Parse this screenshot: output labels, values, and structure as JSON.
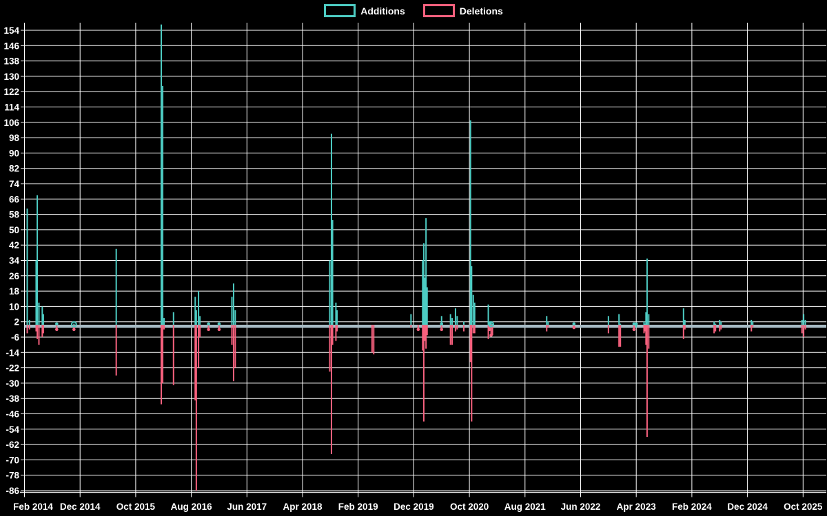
{
  "legend": {
    "items": [
      {
        "label": "Additions",
        "color": "#4dccc3"
      },
      {
        "label": "Deletions",
        "color": "#f7617e"
      }
    ]
  },
  "chart_data": {
    "type": "line",
    "title": "",
    "background_color": "#000000",
    "grid_color": "#ffffff",
    "zero_line_color": "#a8bbc5",
    "legend_position": "top-center",
    "grid": true,
    "x_axis": {
      "tick_labels": [
        "Feb 2014",
        "Dec 2014",
        "Oct 2015",
        "Aug 2016",
        "Jun 2017",
        "Apr 2018",
        "Feb 2019",
        "Dec 2019",
        "Oct 2020",
        "Aug 2021",
        "Jun 2022",
        "Apr 2023",
        "Feb 2024",
        "Dec 2024",
        "Oct 2025"
      ],
      "months_between_ticks": 10
    },
    "y_axis": {
      "min": -86,
      "max": 154,
      "tick_step": 8,
      "ticks": [
        154,
        146,
        138,
        130,
        122,
        114,
        106,
        98,
        90,
        82,
        74,
        66,
        58,
        50,
        42,
        34,
        26,
        18,
        10,
        2,
        -6,
        -14,
        -22,
        -30,
        -38,
        -46,
        -54,
        -62,
        -70,
        -78,
        -86
      ]
    },
    "y_clip_max": 157,
    "series": [
      {
        "name": "Additions",
        "color": "#4dccc3"
      },
      {
        "name": "Deletions",
        "color": "#f7617e"
      }
    ],
    "points": [
      {
        "t": 0.5,
        "a": 61,
        "d": -4
      },
      {
        "t": 0.9,
        "a": 3,
        "d": -2
      },
      {
        "t": 2.1,
        "a": 34,
        "d": -3
      },
      {
        "t": 2.3,
        "a": 68,
        "d": -7
      },
      {
        "t": 2.6,
        "a": 12,
        "d": -10
      },
      {
        "t": 3.2,
        "a": 10,
        "d": -6
      },
      {
        "t": 3.4,
        "a": 6,
        "d": -4
      },
      {
        "t": 5.8,
        "a": 1,
        "d": -2,
        "m": "dot"
      },
      {
        "t": 8.9,
        "a": 1,
        "d": -2,
        "m": "ring"
      },
      {
        "t": 16.5,
        "a": 40,
        "d": -26
      },
      {
        "t": 24.6,
        "a": 160,
        "d": -41
      },
      {
        "t": 24.85,
        "a": 125,
        "d": -30
      },
      {
        "t": 25.1,
        "a": 4,
        "d": -2
      },
      {
        "t": 26.8,
        "a": 7,
        "d": -31
      },
      {
        "t": 30.7,
        "a": 15,
        "d": -39
      },
      {
        "t": 30.9,
        "a": 8,
        "d": -86
      },
      {
        "t": 31.3,
        "a": 18,
        "d": -22
      },
      {
        "t": 31.55,
        "a": 5,
        "d": -6
      },
      {
        "t": 33.1,
        "a": 1,
        "d": -2,
        "m": "dot"
      },
      {
        "t": 35.0,
        "a": 1,
        "d": -2,
        "m": "dot"
      },
      {
        "t": 37.3,
        "a": 15,
        "d": -10
      },
      {
        "t": 37.6,
        "a": 22,
        "d": -29
      },
      {
        "t": 37.9,
        "a": 8,
        "d": -22
      },
      {
        "t": 54.9,
        "a": 34,
        "d": -24
      },
      {
        "t": 55.2,
        "a": 100,
        "d": -67
      },
      {
        "t": 55.4,
        "a": 55,
        "d": -10
      },
      {
        "t": 56.0,
        "a": 12,
        "d": -8
      },
      {
        "t": 56.2,
        "a": 8,
        "d": -3
      },
      {
        "t": 62.5,
        "a": 0,
        "d": -14
      },
      {
        "t": 62.8,
        "a": 0,
        "d": -15
      },
      {
        "t": 69.5,
        "a": 6,
        "d": -1
      },
      {
        "t": 70.8,
        "a": 0,
        "d": -2,
        "m": "dot"
      },
      {
        "t": 71.6,
        "a": 34,
        "d": -13
      },
      {
        "t": 71.8,
        "a": 43,
        "d": -50
      },
      {
        "t": 72.0,
        "a": 25,
        "d": -8
      },
      {
        "t": 72.2,
        "a": 56,
        "d": -12
      },
      {
        "t": 72.4,
        "a": 20,
        "d": -5
      },
      {
        "t": 75.0,
        "a": 5,
        "d": -2,
        "m": "dot"
      },
      {
        "t": 76.6,
        "a": 6,
        "d": -10
      },
      {
        "t": 76.9,
        "a": 4,
        "d": -10
      },
      {
        "t": 77.5,
        "a": 9,
        "d": -3
      },
      {
        "t": 77.8,
        "a": 5,
        "d": -2
      },
      {
        "t": 79.0,
        "a": 2,
        "d": -3
      },
      {
        "t": 80.2,
        "a": 107,
        "d": -19
      },
      {
        "t": 80.4,
        "a": 31,
        "d": -50
      },
      {
        "t": 80.7,
        "a": 16,
        "d": -4
      },
      {
        "t": 80.95,
        "a": 12,
        "d": -4
      },
      {
        "t": 83.4,
        "a": 11,
        "d": -7
      },
      {
        "t": 83.6,
        "a": 2,
        "d": -2,
        "m": "dot"
      },
      {
        "t": 83.9,
        "a": 2,
        "d": -5,
        "m": "ring"
      },
      {
        "t": 84.15,
        "a": 1,
        "d": -5
      },
      {
        "t": 93.9,
        "a": 5,
        "d": -3
      },
      {
        "t": 94.15,
        "a": 2,
        "d": -1
      },
      {
        "t": 98.8,
        "a": 1,
        "d": -1,
        "m": "dot"
      },
      {
        "t": 105.0,
        "a": 5,
        "d": -4
      },
      {
        "t": 106.9,
        "a": 6,
        "d": -11
      },
      {
        "t": 107.15,
        "a": 1,
        "d": -11
      },
      {
        "t": 109.6,
        "a": 1,
        "d": -2,
        "m": "dot"
      },
      {
        "t": 110.0,
        "a": 1,
        "d": 0,
        "m": "dot"
      },
      {
        "t": 111.4,
        "a": 2,
        "d": -4
      },
      {
        "t": 111.6,
        "a": 1,
        "d": -3
      },
      {
        "t": 111.75,
        "a": 7,
        "d": -10
      },
      {
        "t": 111.95,
        "a": 35,
        "d": -58
      },
      {
        "t": 112.25,
        "a": 6,
        "d": -12
      },
      {
        "t": 118.5,
        "a": 9,
        "d": -7
      },
      {
        "t": 118.75,
        "a": 3,
        "d": -2
      },
      {
        "t": 124.0,
        "a": 2,
        "d": -4
      },
      {
        "t": 124.25,
        "a": 1,
        "d": -3
      },
      {
        "t": 125.0,
        "a": 3,
        "d": -3
      },
      {
        "t": 125.25,
        "a": 2,
        "d": -2
      },
      {
        "t": 130.7,
        "a": 3,
        "d": -3
      },
      {
        "t": 130.95,
        "a": 2,
        "d": -1
      },
      {
        "t": 139.8,
        "a": 3,
        "d": -4
      },
      {
        "t": 140.1,
        "a": 6,
        "d": -6
      },
      {
        "t": 140.4,
        "a": 3,
        "d": -2
      }
    ]
  }
}
